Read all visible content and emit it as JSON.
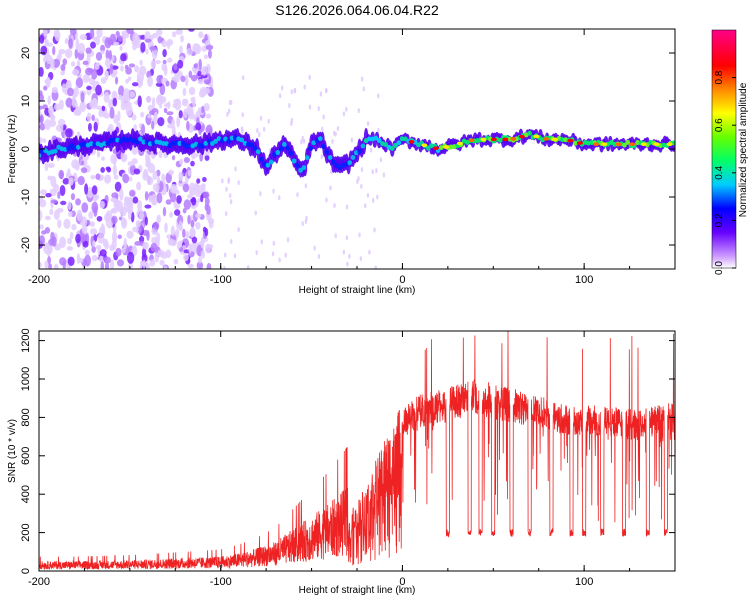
{
  "title": "S126.2026.064.06.04.R22",
  "chart_data": [
    {
      "type": "heatmap",
      "id": "spectrogram",
      "xlabel": "Height of straight line (km)",
      "ylabel": "Frequency (Hz)",
      "xlim": [
        -200,
        150
      ],
      "ylim": [
        -25,
        25
      ],
      "xticks": [
        -200,
        -100,
        0,
        100
      ],
      "yticks": [
        -20,
        -10,
        0,
        10,
        20
      ],
      "ridge": {
        "description": "frequency of peak spectral amplitude vs height",
        "x": [
          -200,
          -190,
          -170,
          -150,
          -130,
          -110,
          -100,
          -90,
          -80,
          -75,
          -70,
          -65,
          -60,
          -55,
          -50,
          -45,
          -40,
          -35,
          -30,
          -25,
          -20,
          -15,
          -10,
          -5,
          0,
          10,
          20,
          30,
          40,
          50,
          60,
          70,
          80,
          90,
          100,
          110,
          120,
          130,
          140,
          150
        ],
        "y": [
          -1,
          0,
          1,
          2,
          1,
          1,
          2,
          2,
          0,
          -4,
          -1,
          1,
          -2,
          -5,
          1,
          2,
          -2,
          -4,
          -3,
          -1,
          2,
          2,
          1,
          0,
          2,
          1,
          0,
          1,
          2,
          2,
          2,
          3,
          2,
          2,
          1,
          1,
          1,
          1,
          1,
          1
        ]
      },
      "colorbar": {
        "label": "Normalized spectral amplitude",
        "range": [
          0,
          1
        ],
        "ticks": [
          "0.0",
          "0.2",
          "0.4",
          "0.6",
          "0.8"
        ]
      }
    },
    {
      "type": "line",
      "id": "snr",
      "xlabel": "Height of straight line (km)",
      "ylabel": "SNR (10 * v/v)",
      "xlim": [
        -200,
        150
      ],
      "ylim": [
        0,
        1250
      ],
      "xticks": [
        -200,
        -100,
        0,
        100
      ],
      "yticks": [
        0,
        200,
        400,
        600,
        800,
        1000,
        1200
      ],
      "series": [
        {
          "name": "SNR",
          "color": "#ee2222",
          "envelope": {
            "x": [
              -200,
              -180,
              -160,
              -140,
              -120,
              -100,
              -90,
              -80,
              -70,
              -60,
              -50,
              -40,
              -30,
              -25,
              -20,
              -15,
              -10,
              -5,
              0,
              5,
              10,
              20,
              30,
              40,
              50,
              60,
              70,
              80,
              90,
              100,
              110,
              120,
              130,
              140,
              150
            ],
            "y": [
              30,
              30,
              32,
              35,
              40,
              45,
              55,
              70,
              90,
              130,
              170,
              210,
              260,
              330,
              420,
              520,
              620,
              700,
              800,
              850,
              880,
              900,
              930,
              960,
              930,
              910,
              880,
              860,
              830,
              830,
              820,
              810,
              800,
              820,
              850
            ]
          },
          "dropouts_x": [
            25,
            37,
            43,
            50,
            60,
            70,
            82,
            93,
            100,
            110,
            122,
            135,
            145
          ],
          "dropout_level": 200
        }
      ]
    }
  ]
}
